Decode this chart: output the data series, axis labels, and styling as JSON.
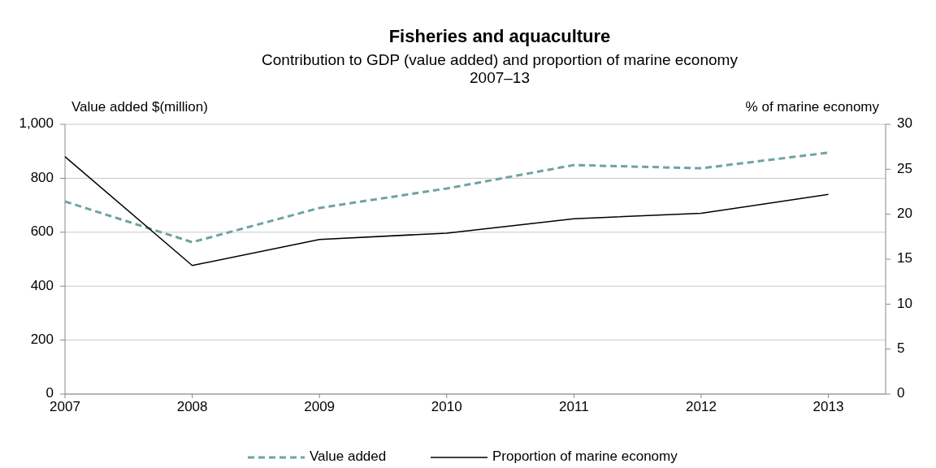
{
  "chart_data": {
    "type": "line",
    "title": "Fisheries and aquaculture",
    "subtitle": "Contribution to GDP (value added) and proportion of marine economy\n2007–13",
    "ylabel": "Value added $(million)",
    "y2label": "% of marine economy",
    "x": [
      2007,
      2008,
      2009,
      2010,
      2011,
      2012,
      2013
    ],
    "series": [
      {
        "name": "Value added",
        "color": "#6fa3a3",
        "line_style": "dashed",
        "values": [
          714,
          563,
          690,
          762,
          849,
          837,
          895
        ]
      },
      {
        "name": "Proportion of marine economy",
        "color": "#000000",
        "line_style": "solid",
        "axis": "y2",
        "values": [
          26.4,
          14.3,
          17.2,
          17.9,
          19.5,
          20.1,
          22.2
        ]
      }
    ],
    "xlim": [
      2007,
      2013.45
    ],
    "xticks": [
      2007,
      2008,
      2009,
      2010,
      2011,
      2012,
      2013
    ],
    "ylim": [
      0,
      1000
    ],
    "yticks": [
      0,
      200,
      400,
      600,
      800,
      {
        "value": 1000,
        "label": "1,000"
      }
    ],
    "y2lim": [
      0,
      30
    ],
    "y2ticks": [
      0,
      5,
      10,
      15,
      20,
      25,
      30
    ],
    "grid": "y",
    "legend": "bottom"
  }
}
